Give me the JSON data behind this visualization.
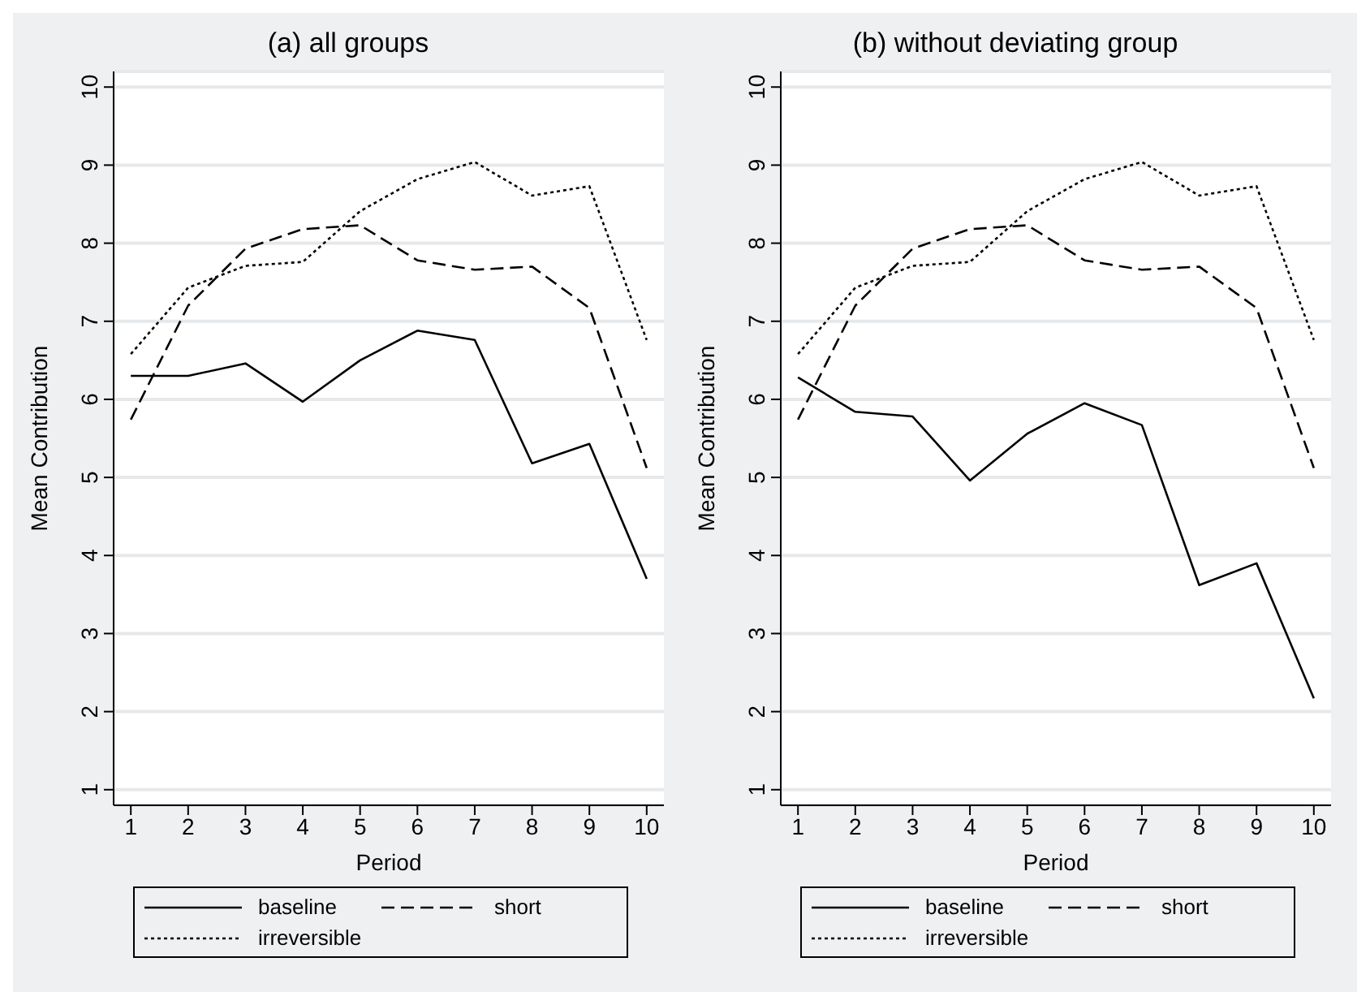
{
  "chart_data": [
    {
      "type": "line",
      "title": "(a) all groups",
      "xlabel": "Period",
      "ylabel": "Mean Contribution",
      "x": [
        1,
        2,
        3,
        4,
        5,
        6,
        7,
        8,
        9,
        10
      ],
      "xlim": [
        0.7,
        10.3
      ],
      "xticks": [
        1,
        2,
        3,
        4,
        5,
        6,
        7,
        8,
        9,
        10
      ],
      "ylim": [
        0.8,
        10.2
      ],
      "yticks": [
        1,
        2,
        3,
        4,
        5,
        6,
        7,
        8,
        9,
        10
      ],
      "grid": "y",
      "legend": "bottom",
      "marker": "none",
      "series": [
        {
          "name": "baseline",
          "color": "#000000",
          "line_style": "solid",
          "values": [
            6.3,
            6.3,
            6.46,
            5.97,
            6.5,
            6.88,
            6.76,
            5.18,
            5.43,
            3.7
          ]
        },
        {
          "name": "short",
          "color": "#000000",
          "line_style": "dashed",
          "values": [
            5.74,
            7.2,
            7.93,
            8.18,
            8.23,
            7.78,
            7.66,
            7.7,
            7.17,
            5.12
          ]
        },
        {
          "name": "irreversible",
          "color": "#000000",
          "line_style": "dotted",
          "values": [
            6.58,
            7.43,
            7.71,
            7.76,
            8.41,
            8.82,
            9.04,
            8.61,
            8.73,
            6.76
          ]
        }
      ]
    },
    {
      "type": "line",
      "title": "(b) without deviating group",
      "xlabel": "Period",
      "ylabel": "Mean Contribution",
      "x": [
        1,
        2,
        3,
        4,
        5,
        6,
        7,
        8,
        9,
        10
      ],
      "xlim": [
        0.7,
        10.3
      ],
      "xticks": [
        1,
        2,
        3,
        4,
        5,
        6,
        7,
        8,
        9,
        10
      ],
      "ylim": [
        0.8,
        10.2
      ],
      "yticks": [
        1,
        2,
        3,
        4,
        5,
        6,
        7,
        8,
        9,
        10
      ],
      "grid": "y",
      "legend": "bottom",
      "marker": "none",
      "series": [
        {
          "name": "baseline",
          "color": "#000000",
          "line_style": "solid",
          "values": [
            6.28,
            5.84,
            5.78,
            4.96,
            5.56,
            5.95,
            5.67,
            3.62,
            3.9,
            2.17
          ]
        },
        {
          "name": "short",
          "color": "#000000",
          "line_style": "dashed",
          "values": [
            5.74,
            7.2,
            7.93,
            8.18,
            8.23,
            7.78,
            7.66,
            7.7,
            7.17,
            5.12
          ]
        },
        {
          "name": "irreversible",
          "color": "#000000",
          "line_style": "dotted",
          "values": [
            6.58,
            7.43,
            7.71,
            7.76,
            8.41,
            8.82,
            9.04,
            8.61,
            8.73,
            6.76
          ]
        }
      ]
    }
  ]
}
